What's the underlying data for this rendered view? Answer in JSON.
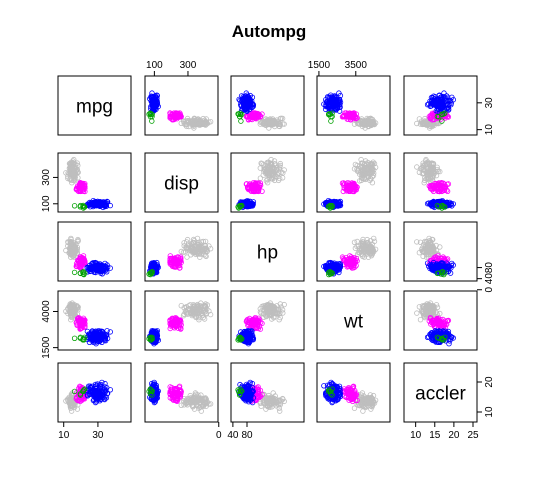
{
  "chart_data": {
    "type": "scatter",
    "title": "Autompg",
    "variables": [
      {
        "name": "mpg",
        "range": [
          9,
          47
        ],
        "ticks": [
          10,
          30
        ],
        "tick_side": "bottom"
      },
      {
        "name": "disp",
        "range": [
          68,
          455
        ],
        "ticks": [
          100,
          300
        ],
        "tick_side": "top"
      },
      {
        "name": "hp",
        "range": [
          46,
          230
        ],
        "ticks": [
          0,
          40,
          80
        ],
        "tick_side": "bottom"
      },
      {
        "name": "wt",
        "range": [
          1613,
          5140
        ],
        "ticks": [
          1500,
          3500
        ],
        "tick_side": "top"
      },
      {
        "name": "accler",
        "range": [
          8,
          25
        ],
        "ticks": [
          10,
          15,
          20,
          25
        ],
        "tick_side": "bottom"
      }
    ],
    "y_ticks": [
      {
        "row": 1,
        "values": [
          10,
          30
        ]
      },
      {
        "row": 2,
        "values": [
          100,
          300
        ]
      },
      {
        "row": 3,
        "values": [
          0,
          40,
          80
        ]
      },
      {
        "row": 4,
        "values": [
          1500,
          4000
        ]
      },
      {
        "row": 5,
        "values": [
          10,
          20
        ]
      }
    ],
    "groups": [
      {
        "color": "#bebebe",
        "count": 100,
        "center": [
          15,
          350,
          150,
          4100,
          13.5
        ],
        "spread": [
          2.5,
          55,
          25,
          450,
          2.2
        ]
      },
      {
        "color": "#ff00ff",
        "count": 70,
        "center": [
          20,
          225,
          100,
          3200,
          16.0
        ],
        "spread": [
          2.5,
          35,
          15,
          300,
          2.0
        ]
      },
      {
        "color": "#0000ff",
        "count": 130,
        "center": [
          30,
          100,
          78,
          2250,
          16.5
        ],
        "spread": [
          5.0,
          20,
          14,
          330,
          2.3
        ]
      },
      {
        "color": "#00a000",
        "count": 8,
        "center": [
          20,
          80,
          60,
          2100,
          16.5
        ],
        "spread": [
          3.0,
          8,
          8,
          150,
          1.5
        ]
      }
    ]
  }
}
